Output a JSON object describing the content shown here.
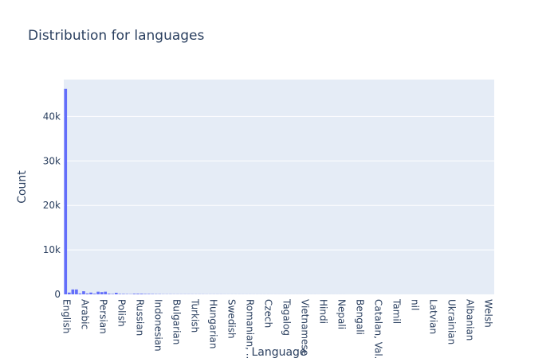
{
  "chart_data": {
    "type": "bar",
    "title": "Distribution for languages",
    "xlabel": "Language",
    "ylabel": "Count",
    "ylim": [
      0,
      48300
    ],
    "yticks": [
      0,
      10000,
      20000,
      30000,
      40000
    ],
    "ytick_labels": [
      "0",
      "10k",
      "20k",
      "30k",
      "40k"
    ],
    "grid": true,
    "bar_color": "#636efa",
    "plot_bg": "#e5ecf6",
    "values": [
      46200,
      400,
      1100,
      1100,
      200,
      700,
      200,
      400,
      150,
      600,
      500,
      600,
      150,
      100,
      350,
      100,
      100,
      80,
      60,
      150,
      150,
      150,
      100,
      100,
      80,
      60,
      60,
      40,
      40,
      40,
      30,
      30,
      30,
      30,
      30,
      30,
      25,
      25,
      25,
      20,
      20,
      20,
      20,
      20,
      15,
      15,
      15,
      15,
      15,
      12,
      12,
      12,
      10,
      10,
      10,
      10,
      10,
      8,
      8,
      8,
      8,
      8,
      6,
      6,
      6,
      6,
      5,
      5,
      5,
      5,
      4,
      4,
      4,
      4,
      3,
      3,
      3,
      3,
      2,
      2,
      2,
      2,
      2,
      2,
      2,
      1,
      1,
      1,
      1,
      1,
      1,
      1,
      1,
      1,
      1,
      1,
      1,
      1,
      1,
      1,
      1,
      1,
      1,
      1,
      1,
      1,
      1,
      1,
      1,
      1,
      1,
      1,
      1,
      1,
      1,
      1,
      1,
      1,
      1
    ],
    "tick_labels": [
      "English",
      "Arabic",
      "Persian",
      "Polish",
      "Russian",
      "Indonesian",
      "Bulgarian",
      "Turkish",
      "Hungarian",
      "Swedish",
      "Romanian, ...",
      "Czech",
      "Tagalog",
      "Vietnamese",
      "Hindi",
      "Nepali",
      "Bengali",
      "Catalan, Val...",
      "Tamil",
      "nil",
      "Latvian",
      "Ukrainian",
      "Albanian",
      "Welsh"
    ]
  }
}
